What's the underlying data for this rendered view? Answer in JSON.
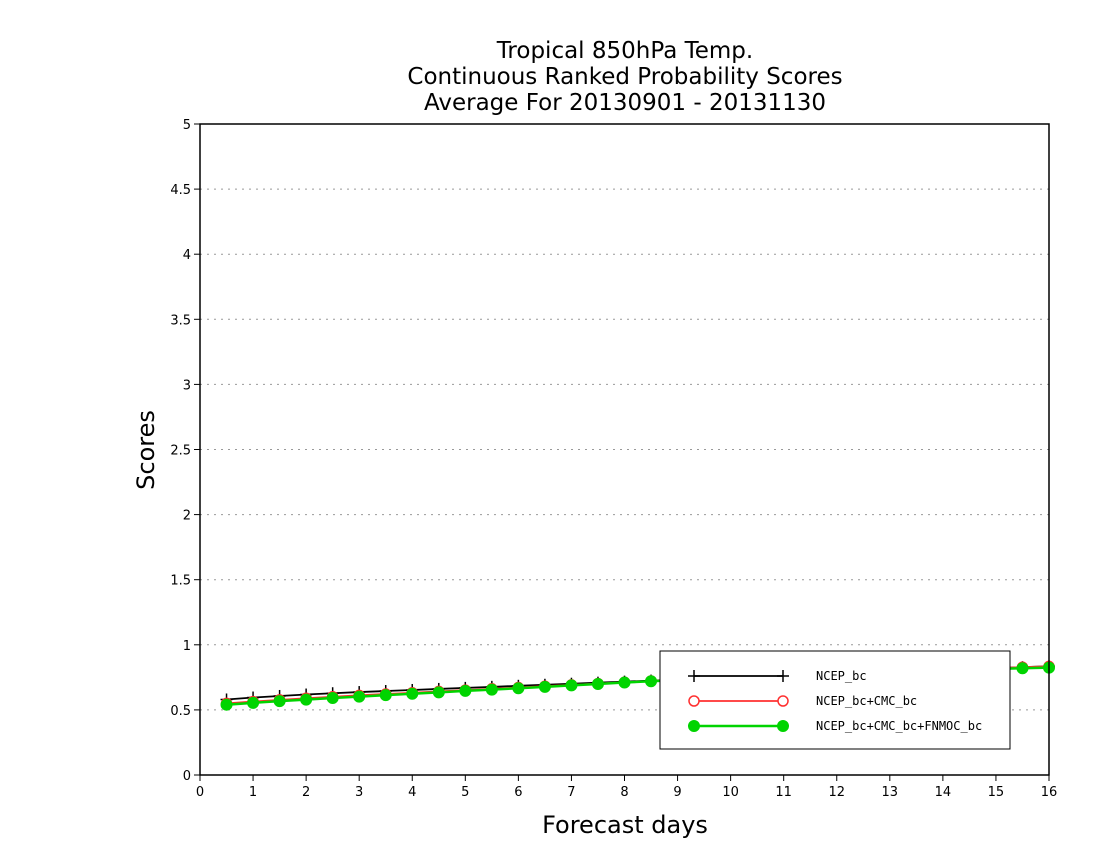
{
  "chart_data": {
    "type": "line",
    "title_lines": [
      "Tropical 850hPa Temp.",
      "Continuous Ranked Probability Scores",
      "Average For 20130901 - 20131130"
    ],
    "xlabel": "Forecast days",
    "ylabel": "Scores",
    "xlim": [
      0,
      16
    ],
    "ylim": [
      0,
      5
    ],
    "x_ticks": [
      "0",
      "1",
      "2",
      "3",
      "4",
      "5",
      "6",
      "7",
      "8",
      "9",
      "10",
      "11",
      "12",
      "13",
      "14",
      "15",
      "16"
    ],
    "y_ticks": [
      "0",
      "0.5",
      "1",
      "1.5",
      "2",
      "2.5",
      "3",
      "3.5",
      "4",
      "4.5",
      "5"
    ],
    "grid": "horizontal dotted",
    "legend_position": "bottom-right",
    "x": [
      0.5,
      1,
      1.5,
      2,
      2.5,
      3,
      3.5,
      4,
      4.5,
      5,
      5.5,
      6,
      6.5,
      7,
      7.5,
      8,
      8.5,
      9,
      9.5,
      10,
      10.5,
      11,
      11.5,
      12,
      12.5,
      13,
      13.5,
      14,
      14.5,
      15,
      15.5,
      16
    ],
    "series": [
      {
        "name": "NCEP_bc",
        "color": "#000000",
        "marker": "plus",
        "values": [
          0.58,
          0.595,
          0.607,
          0.618,
          0.628,
          0.637,
          0.645,
          0.653,
          0.661,
          0.669,
          0.677,
          0.685,
          0.693,
          0.701,
          0.709,
          0.717,
          0.725,
          0.733,
          0.741,
          0.749,
          0.757,
          0.765,
          0.772,
          0.779,
          0.786,
          0.793,
          0.8,
          0.807,
          0.814,
          0.821,
          0.828,
          0.835
        ]
      },
      {
        "name": "NCEP_bc+CMC_bc",
        "color": "#ff3030",
        "marker": "open-circle",
        "values": [
          0.55,
          0.564,
          0.577,
          0.589,
          0.601,
          0.612,
          0.622,
          0.632,
          0.642,
          0.652,
          0.662,
          0.672,
          0.682,
          0.692,
          0.702,
          0.712,
          0.722,
          0.732,
          0.741,
          0.75,
          0.758,
          0.766,
          0.774,
          0.782,
          0.789,
          0.796,
          0.803,
          0.81,
          0.816,
          0.822,
          0.828,
          0.834
        ]
      },
      {
        "name": "NCEP_bc+CMC_bc+FNMOC_bc",
        "color": "#00d400",
        "marker": "filled-circle",
        "values": [
          0.54,
          0.554,
          0.567,
          0.579,
          0.591,
          0.602,
          0.613,
          0.624,
          0.635,
          0.646,
          0.656,
          0.666,
          0.677,
          0.688,
          0.699,
          0.71,
          0.72,
          0.729,
          0.737,
          0.745,
          0.753,
          0.761,
          0.768,
          0.775,
          0.782,
          0.789,
          0.796,
          0.803,
          0.809,
          0.815,
          0.82,
          0.825
        ]
      }
    ]
  }
}
